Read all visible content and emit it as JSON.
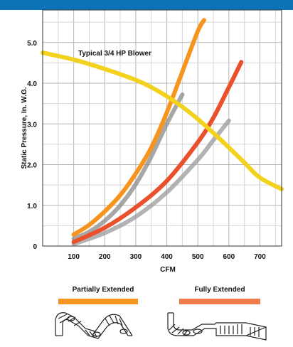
{
  "header": {
    "banner_text": ""
  },
  "chart_data": {
    "type": "line",
    "title": "",
    "xlabel": "CFM",
    "ylabel": "Static Pressure, In. W.G.",
    "xlim": [
      0,
      770
    ],
    "ylim": [
      0,
      5.8
    ],
    "x_ticks": [
      "100",
      "200",
      "300",
      "400",
      "500",
      "600",
      "700"
    ],
    "y_ticks": [
      "0",
      "1.0",
      "2.0",
      "3.0",
      "4.0",
      "5.0"
    ],
    "grid": true,
    "series": [
      {
        "name": "Typical 3/4 HP Blower",
        "color": "#f2d21c",
        "x": [
          0,
          100,
          200,
          300,
          350,
          400,
          450,
          500,
          550,
          600,
          650,
          700,
          770
        ],
        "y": [
          4.75,
          4.58,
          4.35,
          4.08,
          3.9,
          3.68,
          3.42,
          3.12,
          2.78,
          2.42,
          2.05,
          1.68,
          1.4
        ]
      },
      {
        "name": "Partially Extended",
        "color": "#f7941d",
        "x": [
          100,
          150,
          200,
          250,
          300,
          350,
          400,
          450,
          500,
          520
        ],
        "y": [
          0.28,
          0.52,
          0.85,
          1.25,
          1.78,
          2.42,
          3.28,
          4.28,
          5.28,
          5.55
        ]
      },
      {
        "name": "Fully Extended",
        "color": "#e9502b",
        "x": [
          100,
          200,
          300,
          400,
          500,
          550,
          600,
          640
        ],
        "y": [
          0.1,
          0.45,
          0.95,
          1.6,
          2.55,
          3.15,
          3.9,
          4.52
        ]
      },
      {
        "color": "#8a8a8a",
        "x": [
          100,
          150,
          200,
          250,
          300,
          350,
          400,
          450
        ],
        "y": [
          0.18,
          0.35,
          0.62,
          1.0,
          1.52,
          2.2,
          3.0,
          3.72
        ]
      },
      {
        "color": "#999999",
        "x": [
          100,
          200,
          300,
          400,
          500,
          550,
          600
        ],
        "y": [
          0.05,
          0.32,
          0.72,
          1.32,
          2.12,
          2.6,
          3.08
        ]
      }
    ],
    "annotations": [
      {
        "text": "Typical 3/4 HP Blower"
      }
    ],
    "legend": [
      {
        "label": "Partially Extended",
        "color": "#f7941d"
      },
      {
        "label": "Fully Extended",
        "color": "#f07a4b"
      }
    ]
  }
}
